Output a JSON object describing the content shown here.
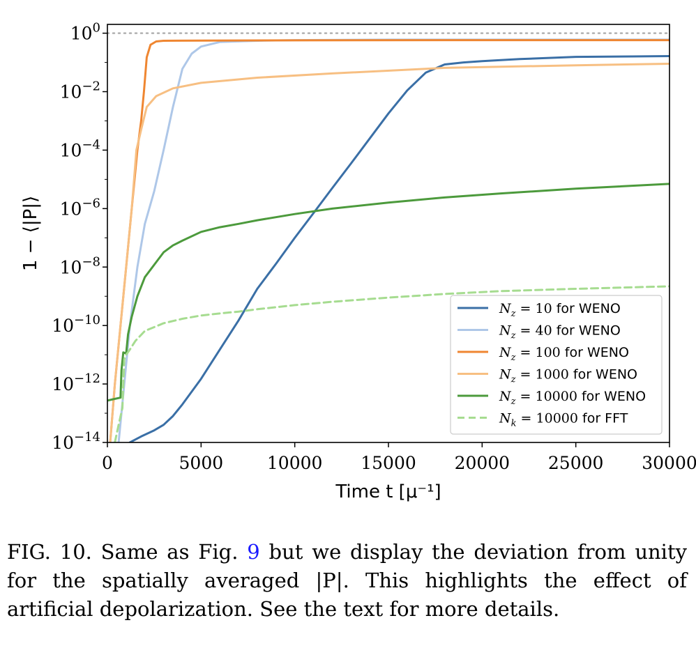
{
  "chart_data": {
    "type": "line",
    "xlabel": "Time  t [μ⁻¹]",
    "ylabel": "1 − ⟨|P|⟩",
    "yscale": "log",
    "xlim": [
      0,
      30000
    ],
    "ylim": [
      1e-14,
      2
    ],
    "x_ticks": [
      0,
      5000,
      10000,
      15000,
      20000,
      25000,
      30000
    ],
    "y_ticks": [
      {
        "value": 1,
        "label": "10",
        "exp": "0"
      },
      {
        "value": 0.01,
        "label": "10",
        "exp": "−2"
      },
      {
        "value": 0.0001,
        "label": "10",
        "exp": "−4"
      },
      {
        "value": 1e-06,
        "label": "10",
        "exp": "−6"
      },
      {
        "value": 1e-08,
        "label": "10",
        "exp": "−8"
      },
      {
        "value": 1e-10,
        "label": "10",
        "exp": "−10"
      },
      {
        "value": 1e-12,
        "label": "10",
        "exp": "−12"
      },
      {
        "value": 1e-14,
        "label": "10",
        "exp": "−14"
      }
    ],
    "legend_position": "lower-right",
    "reference_line": {
      "y": 1,
      "color": "#b0b0b0",
      "style": "dotted"
    },
    "series": [
      {
        "name": "N_z = 10 for WENO",
        "legend_math": "N",
        "legend_sub": "z",
        "legend_value": " = 10",
        "legend_suffix": " for WENO",
        "color": "#3a6fa6",
        "dash": false,
        "points": [
          [
            1200,
            1e-14
          ],
          [
            1800,
            1.6e-14
          ],
          [
            2500,
            2.6e-14
          ],
          [
            3000,
            4e-14
          ],
          [
            3500,
            8e-14
          ],
          [
            4000,
            2e-13
          ],
          [
            5000,
            1.5e-12
          ],
          [
            6000,
            1.5e-11
          ],
          [
            7000,
            1.5e-10
          ],
          [
            8000,
            1.8e-09
          ],
          [
            9000,
            1.3e-08
          ],
          [
            10000,
            1e-07
          ],
          [
            11000,
            7e-07
          ],
          [
            12000,
            5e-06
          ],
          [
            13000,
            3.5e-05
          ],
          [
            14000,
            0.00025
          ],
          [
            15000,
            0.0018
          ],
          [
            16000,
            0.011
          ],
          [
            17000,
            0.045
          ],
          [
            18000,
            0.085
          ],
          [
            19000,
            0.1
          ],
          [
            20000,
            0.11
          ],
          [
            22000,
            0.13
          ],
          [
            25000,
            0.155
          ],
          [
            28000,
            0.16
          ],
          [
            30000,
            0.165
          ]
        ]
      },
      {
        "name": "N_z = 40 for WENO",
        "legend_math": "N",
        "legend_sub": "z",
        "legend_value": " = 40",
        "legend_suffix": " for WENO",
        "color": "#aec7e8",
        "dash": false,
        "points": [
          [
            600,
            1e-14
          ],
          [
            900,
            1e-12
          ],
          [
            1200,
            1e-10
          ],
          [
            1600,
            1e-08
          ],
          [
            2000,
            3e-07
          ],
          [
            2500,
            4e-06
          ],
          [
            3000,
            0.0001
          ],
          [
            3500,
            0.003
          ],
          [
            4000,
            0.06
          ],
          [
            4500,
            0.2
          ],
          [
            5000,
            0.35
          ],
          [
            6000,
            0.5
          ],
          [
            8000,
            0.55
          ],
          [
            10000,
            0.58
          ],
          [
            15000,
            0.6
          ],
          [
            20000,
            0.6
          ],
          [
            30000,
            0.6
          ]
        ]
      },
      {
        "name": "N_z = 100 for WENO",
        "legend_math": "N",
        "legend_sub": "z",
        "legend_value": " = 100",
        "legend_suffix": " for WENO",
        "color": "#ef8631",
        "dash": false,
        "points": [
          [
            150,
            1e-14
          ],
          [
            400,
            1e-12
          ],
          [
            700,
            1e-10
          ],
          [
            1000,
            1e-08
          ],
          [
            1300,
            1e-06
          ],
          [
            1600,
            0.0001
          ],
          [
            1800,
            0.001
          ],
          [
            1950,
            0.01
          ],
          [
            2100,
            0.15
          ],
          [
            2300,
            0.4
          ],
          [
            2600,
            0.52
          ],
          [
            3000,
            0.55
          ],
          [
            5000,
            0.56
          ],
          [
            10000,
            0.57
          ],
          [
            20000,
            0.58
          ],
          [
            30000,
            0.58
          ]
        ]
      },
      {
        "name": "N_z = 1000 for WENO",
        "legend_math": "N",
        "legend_sub": "z",
        "legend_value": " = 1000",
        "legend_suffix": " for WENO",
        "color": "#f7bf82",
        "dash": false,
        "points": [
          [
            150,
            1e-14
          ],
          [
            400,
            1e-12
          ],
          [
            700,
            1e-10
          ],
          [
            1000,
            1e-08
          ],
          [
            1300,
            1e-06
          ],
          [
            1550,
            0.0001
          ],
          [
            1800,
            0.0005
          ],
          [
            2100,
            0.003
          ],
          [
            2600,
            0.007
          ],
          [
            3500,
            0.013
          ],
          [
            5000,
            0.02
          ],
          [
            8000,
            0.03
          ],
          [
            12000,
            0.042
          ],
          [
            18000,
            0.065
          ],
          [
            25000,
            0.08
          ],
          [
            30000,
            0.09
          ]
        ]
      },
      {
        "name": "N_z = 10000 for WENO",
        "legend_math": "N",
        "legend_sub": "z",
        "legend_value": " = 10000",
        "legend_suffix": " for WENO",
        "color": "#4c9a3c",
        "dash": false,
        "points": [
          [
            0,
            2.7e-13
          ],
          [
            300,
            3e-13
          ],
          [
            700,
            3.4e-13
          ],
          [
            750,
            3e-12
          ],
          [
            850,
            1.2e-11
          ],
          [
            1000,
            1.1e-11
          ],
          [
            1100,
            5e-11
          ],
          [
            1300,
            2e-10
          ],
          [
            1600,
            1e-09
          ],
          [
            2000,
            4.5e-09
          ],
          [
            2500,
            1.2e-08
          ],
          [
            3000,
            3.2e-08
          ],
          [
            3500,
            5.5e-08
          ],
          [
            4000,
            8e-08
          ],
          [
            5000,
            1.6e-07
          ],
          [
            6000,
            2.3e-07
          ],
          [
            7000,
            3e-07
          ],
          [
            8000,
            4e-07
          ],
          [
            10000,
            6.5e-07
          ],
          [
            12000,
            1e-06
          ],
          [
            15000,
            1.6e-06
          ],
          [
            18000,
            2.4e-06
          ],
          [
            21000,
            3.3e-06
          ],
          [
            25000,
            4.8e-06
          ],
          [
            30000,
            7e-06
          ]
        ]
      },
      {
        "name": "N_k = 10000 for FFT",
        "legend_math": "N",
        "legend_sub": "k",
        "legend_value": " = 10000",
        "legend_suffix": " for FFT",
        "color": "#a6dc90",
        "dash": true,
        "points": [
          [
            400,
            1e-14
          ],
          [
            600,
            4e-14
          ],
          [
            800,
            1.5e-13
          ],
          [
            900,
            7e-12
          ],
          [
            1000,
            1e-11
          ],
          [
            1200,
            1.5e-11
          ],
          [
            1500,
            3e-11
          ],
          [
            2000,
            6.5e-11
          ],
          [
            3000,
            1.2e-10
          ],
          [
            4000,
            1.7e-10
          ],
          [
            5000,
            2.2e-10
          ],
          [
            6000,
            2.6e-10
          ],
          [
            7000,
            3e-10
          ],
          [
            8000,
            3.6e-10
          ],
          [
            10000,
            5e-10
          ],
          [
            12000,
            6.5e-10
          ],
          [
            15000,
            9e-10
          ],
          [
            18000,
            1.2e-09
          ],
          [
            21000,
            1.5e-09
          ],
          [
            25000,
            1.8e-09
          ],
          [
            30000,
            2.2e-09
          ]
        ]
      }
    ]
  },
  "caption": {
    "lead": "FIG. 10.  Same as Fig. ",
    "ref": "9",
    "rest": " but we display the deviation from unity for the spatially averaged |P|. This highlights the effect of artificial depolarization. See the text for more details."
  }
}
